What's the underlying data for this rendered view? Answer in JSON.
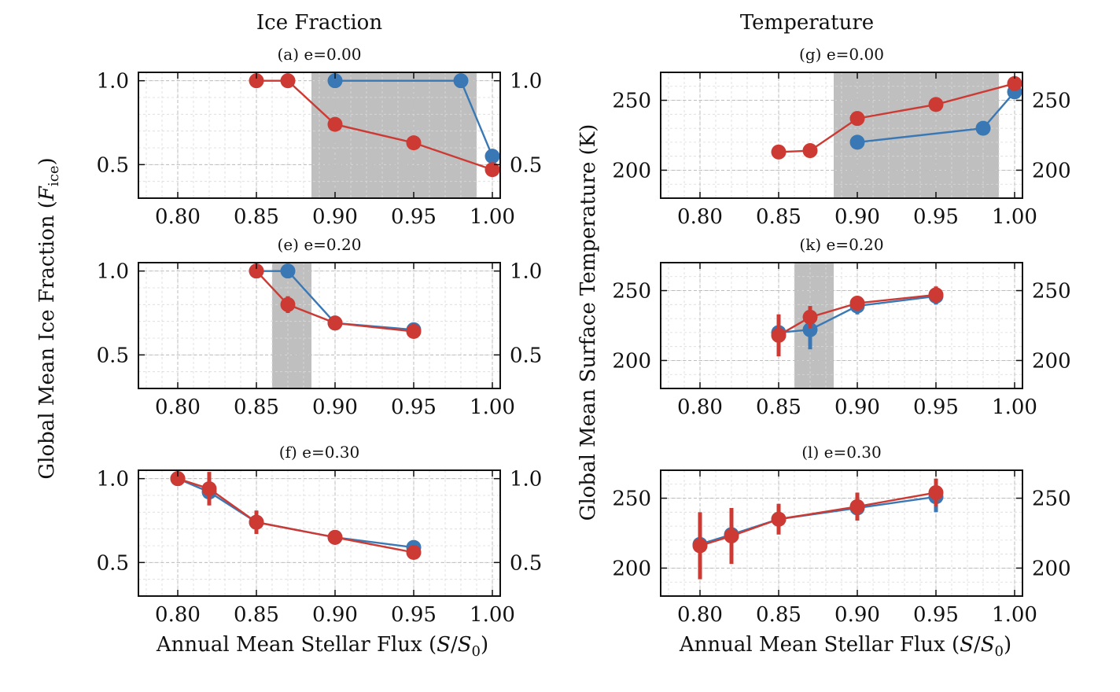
{
  "figure": {
    "column_titles": [
      "Ice Fraction",
      "Temperature"
    ],
    "left_ylabel": "Global Mean Ice Fraction (",
    "left_ylabel_sym": "F",
    "left_ylabel_sub": "ice",
    "left_ylabel_end": ")",
    "right_ylabel": "Global Mean Surface Temperature (K)",
    "xlabel": "Annual Mean Stellar Flux (",
    "xlabel_sym1": "S",
    "xlabel_slash": "/",
    "xlabel_sym2": "S",
    "xlabel_sub": "0",
    "xlabel_end": ")",
    "colors": {
      "blue": "#3a78b5",
      "red": "#cc3a33",
      "shade": "#bfbfbf"
    }
  },
  "chart_data": [
    {
      "type": "line",
      "title": "(a) e=0.00",
      "xlim": [
        0.775,
        1.005
      ],
      "ylim": [
        0.3,
        1.05
      ],
      "xticks": [
        0.8,
        0.85,
        0.9,
        0.95,
        1.0
      ],
      "xticklabels": [
        "0.80",
        "0.85",
        "0.90",
        "0.95",
        "1.00"
      ],
      "yticks": [
        0.5,
        1.0
      ],
      "yticklabels": [
        "0.5",
        "1.0"
      ],
      "shade": [
        0.885,
        0.99
      ],
      "series": [
        {
          "name": "blue",
          "x": [
            0.9,
            0.98,
            1.0
          ],
          "y": [
            1.0,
            1.0,
            0.55
          ],
          "err": [
            0,
            0,
            0
          ]
        },
        {
          "name": "red",
          "x": [
            0.85,
            0.87,
            0.9,
            0.95,
            1.0
          ],
          "y": [
            1.0,
            1.0,
            0.74,
            0.63,
            0.47
          ],
          "err": [
            0,
            0,
            0,
            0,
            0
          ]
        }
      ]
    },
    {
      "type": "line",
      "title": "(e) e=0.20",
      "xlim": [
        0.775,
        1.005
      ],
      "ylim": [
        0.3,
        1.05
      ],
      "xticks": [
        0.8,
        0.85,
        0.9,
        0.95,
        1.0
      ],
      "xticklabels": [
        "0.80",
        "0.85",
        "0.90",
        "0.95",
        "1.00"
      ],
      "yticks": [
        0.5,
        1.0
      ],
      "yticklabels": [
        "0.5",
        "1.0"
      ],
      "shade": [
        0.86,
        0.885
      ],
      "series": [
        {
          "name": "blue",
          "x": [
            0.85,
            0.87,
            0.9,
            0.95
          ],
          "y": [
            1.0,
            1.0,
            0.69,
            0.65
          ],
          "err": [
            0,
            0,
            0,
            0
          ]
        },
        {
          "name": "red",
          "x": [
            0.85,
            0.87,
            0.9,
            0.95
          ],
          "y": [
            1.0,
            0.8,
            0.69,
            0.64
          ],
          "err": [
            0,
            0.05,
            0.02,
            0.02
          ]
        }
      ]
    },
    {
      "type": "line",
      "title": "(f) e=0.30",
      "xlim": [
        0.775,
        1.005
      ],
      "ylim": [
        0.3,
        1.05
      ],
      "xticks": [
        0.8,
        0.85,
        0.9,
        0.95,
        1.0
      ],
      "xticklabels": [
        "0.80",
        "0.85",
        "0.90",
        "0.95",
        "1.00"
      ],
      "yticks": [
        0.5,
        1.0
      ],
      "yticklabels": [
        "0.5",
        "1.0"
      ],
      "shade": null,
      "series": [
        {
          "name": "blue",
          "x": [
            0.8,
            0.82,
            0.85,
            0.9,
            0.95
          ],
          "y": [
            1.0,
            0.92,
            0.74,
            0.65,
            0.59
          ],
          "err": [
            0,
            0.06,
            0.05,
            0.03,
            0.04
          ]
        },
        {
          "name": "red",
          "x": [
            0.8,
            0.82,
            0.85,
            0.9,
            0.95
          ],
          "y": [
            1.0,
            0.94,
            0.74,
            0.65,
            0.56
          ],
          "err": [
            0,
            0.1,
            0.07,
            0.04,
            0.04
          ]
        }
      ]
    },
    {
      "type": "line",
      "title": "(g) e=0.00",
      "xlim": [
        0.775,
        1.005
      ],
      "ylim": [
        180,
        270
      ],
      "xticks": [
        0.8,
        0.85,
        0.9,
        0.95,
        1.0
      ],
      "xticklabels": [
        "0.80",
        "0.85",
        "0.90",
        "0.95",
        "1.00"
      ],
      "yticks": [
        200,
        250
      ],
      "yticklabels": [
        "200",
        "250"
      ],
      "shade": [
        0.885,
        0.99
      ],
      "series": [
        {
          "name": "blue",
          "x": [
            0.9,
            0.98,
            1.0
          ],
          "y": [
            220,
            230,
            256
          ],
          "err": [
            0,
            0,
            0
          ]
        },
        {
          "name": "red",
          "x": [
            0.85,
            0.87,
            0.9,
            0.95,
            1.0
          ],
          "y": [
            213,
            214,
            237,
            247,
            262
          ],
          "err": [
            0,
            0,
            0,
            0,
            0
          ]
        }
      ]
    },
    {
      "type": "line",
      "title": "(k) e=0.20",
      "xlim": [
        0.775,
        1.005
      ],
      "ylim": [
        180,
        270
      ],
      "xticks": [
        0.8,
        0.85,
        0.9,
        0.95,
        1.0
      ],
      "xticklabels": [
        "0.80",
        "0.85",
        "0.90",
        "0.95",
        "1.00"
      ],
      "yticks": [
        200,
        250
      ],
      "yticklabels": [
        "200",
        "250"
      ],
      "shade": [
        0.86,
        0.885
      ],
      "series": [
        {
          "name": "blue",
          "x": [
            0.85,
            0.87,
            0.9,
            0.95
          ],
          "y": [
            220,
            222,
            239,
            246
          ],
          "err": [
            12,
            14,
            6,
            6
          ]
        },
        {
          "name": "red",
          "x": [
            0.85,
            0.87,
            0.9,
            0.95
          ],
          "y": [
            218,
            231,
            241,
            247
          ],
          "err": [
            15,
            8,
            5,
            6
          ]
        }
      ]
    },
    {
      "type": "line",
      "title": "(l) e=0.30",
      "xlim": [
        0.775,
        1.005
      ],
      "ylim": [
        180,
        270
      ],
      "xticks": [
        0.8,
        0.85,
        0.9,
        0.95,
        1.0
      ],
      "xticklabels": [
        "0.80",
        "0.85",
        "0.90",
        "0.95",
        "1.00"
      ],
      "yticks": [
        200,
        250
      ],
      "yticklabels": [
        "200",
        "250"
      ],
      "shade": null,
      "series": [
        {
          "name": "blue",
          "x": [
            0.8,
            0.82,
            0.85,
            0.9,
            0.95
          ],
          "y": [
            217,
            224,
            235,
            243,
            251
          ],
          "err": [
            16,
            13,
            9,
            8,
            11
          ]
        },
        {
          "name": "red",
          "x": [
            0.8,
            0.82,
            0.85,
            0.9,
            0.95
          ],
          "y": [
            216,
            223,
            235,
            244,
            254
          ],
          "err": [
            24,
            20,
            11,
            10,
            10
          ]
        }
      ]
    }
  ]
}
